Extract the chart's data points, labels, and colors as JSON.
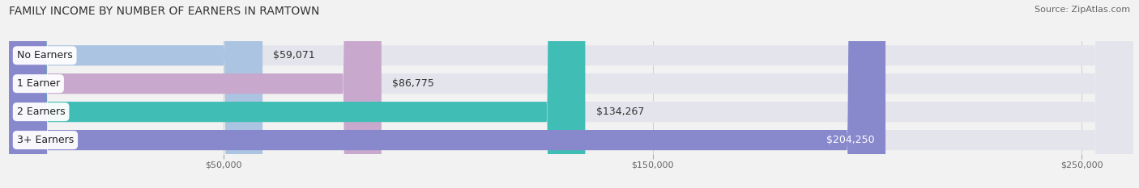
{
  "title": "FAMILY INCOME BY NUMBER OF EARNERS IN RAMTOWN",
  "source": "Source: ZipAtlas.com",
  "categories": [
    "No Earners",
    "1 Earner",
    "2 Earners",
    "3+ Earners"
  ],
  "values": [
    59071,
    86775,
    134267,
    204250
  ],
  "bar_colors": [
    "#aac4e2",
    "#c8a8cc",
    "#40bdb5",
    "#8888cc"
  ],
  "label_colors": [
    "#333333",
    "#333333",
    "#333333",
    "#ffffff"
  ],
  "bg_color": "#f2f2f2",
  "bar_bg_color": "#e4e4ec",
  "xmin": 0,
  "xmax": 262000,
  "xticks": [
    50000,
    150000,
    250000
  ],
  "xtick_labels": [
    "$50,000",
    "$150,000",
    "$250,000"
  ],
  "value_fontsize": 9,
  "category_fontsize": 9,
  "title_fontsize": 10,
  "source_fontsize": 8,
  "bar_height": 0.72,
  "bar_gap": 0.28
}
